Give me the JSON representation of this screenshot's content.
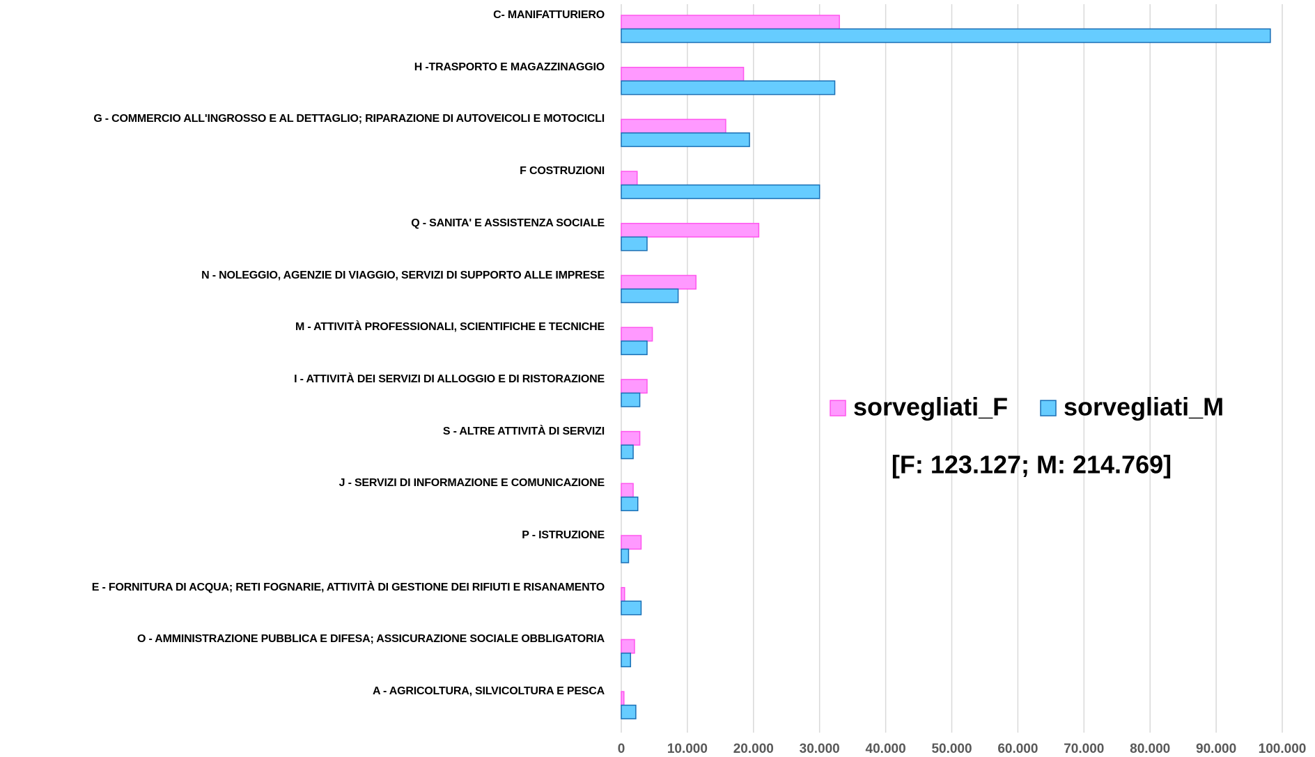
{
  "chart_data": {
    "type": "hbar",
    "categories": [
      "C- MANIFATTURIERO",
      "H -TRASPORTO E MAGAZZINAGGIO",
      "G - COMMERCIO ALL'INGROSSO E AL DETTAGLIO; RIPARAZIONE DI AUTOVEICOLI E MOTOCICLI",
      "F COSTRUZIONI",
      "Q - SANITA' E ASSISTENZA SOCIALE",
      "N - NOLEGGIO, AGENZIE DI VIAGGIO, SERVIZI DI SUPPORTO ALLE IMPRESE",
      "M - ATTIVITÀ PROFESSIONALI, SCIENTIFICHE E TECNICHE",
      "I - ATTIVITÀ DEI SERVIZI DI ALLOGGIO E DI RISTORAZIONE",
      "S - ALTRE ATTIVITÀ DI SERVIZI",
      "J - SERVIZI DI INFORMAZIONE E COMUNICAZIONE",
      "P - ISTRUZIONE",
      "E - FORNITURA DI ACQUA; RETI FOGNARIE, ATTIVITÀ DI GESTIONE DEI RIFIUTI E RISANAMENTO",
      "O - AMMINISTRAZIONE PUBBLICA E DIFESA; ASSICURAZIONE SOCIALE OBBLIGATORIA",
      "A - AGRICOLTURA, SILVICOLTURA E PESCA"
    ],
    "series": [
      {
        "name": "sorvegliati_F",
        "color": "#ff99ff",
        "stroke": "#ff55ee",
        "values": [
          33000,
          18500,
          15800,
          2400,
          20800,
          11300,
          4700,
          3900,
          2800,
          1800,
          3000,
          500,
          2000,
          400
        ]
      },
      {
        "name": "sorvegliati_M",
        "color": "#66ccff",
        "stroke": "#1a6fb5",
        "values": [
          98200,
          32300,
          19400,
          30000,
          3900,
          8600,
          3900,
          2800,
          1800,
          2500,
          1100,
          3000,
          1400,
          2200
        ]
      }
    ],
    "annotation": "[F: 123.127; M: 214.769]",
    "xlim": [
      0,
      100000
    ],
    "xticks": [
      0,
      {
        "value": 10000,
        "label": "10.000"
      },
      {
        "value": 20000,
        "label": "20.000"
      },
      {
        "value": 30000,
        "label": "30.000"
      },
      {
        "value": 40000,
        "label": "40.000"
      },
      {
        "value": 50000,
        "label": "50.000"
      },
      {
        "value": 60000,
        "label": "60.000"
      },
      {
        "value": 70000,
        "label": "70.000"
      },
      {
        "value": 80000,
        "label": "80.000"
      },
      {
        "value": 90000,
        "label": "90.000"
      },
      {
        "value": 100000,
        "label": "100.000"
      }
    ],
    "grid": true
  }
}
